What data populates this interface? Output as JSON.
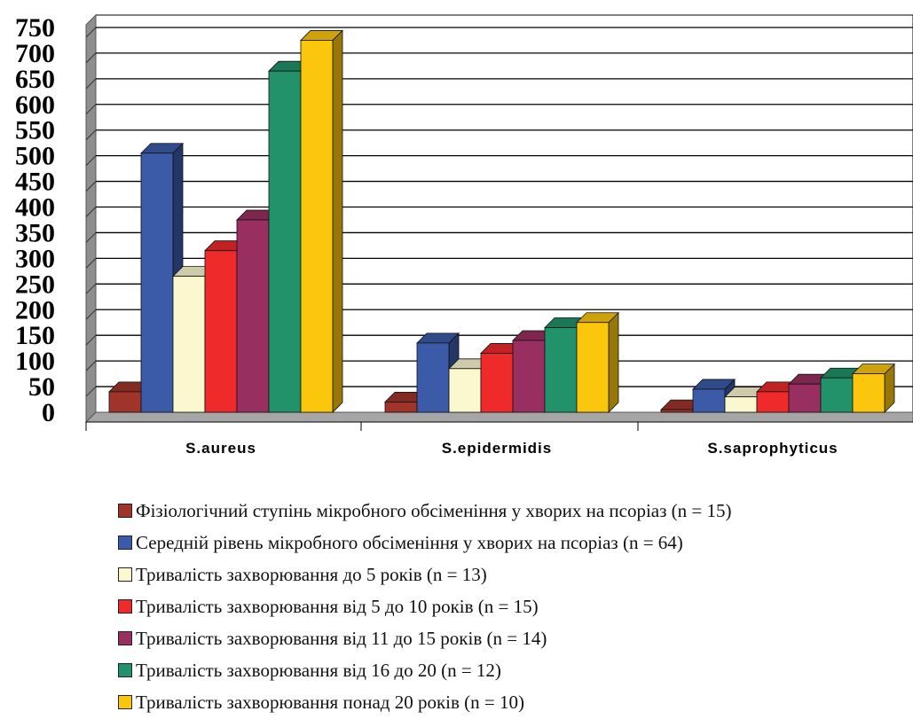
{
  "chart_data": {
    "type": "bar",
    "title": "",
    "xlabel": "",
    "ylabel": "",
    "ylim": [
      0,
      750
    ],
    "yticks": [
      "0",
      "50",
      "100",
      "150",
      "200",
      "250",
      "300",
      "350",
      "400",
      "450",
      "500",
      "550",
      "600",
      "650",
      "700",
      "750"
    ],
    "grid": true,
    "legend_position": "bottom",
    "categories": [
      "S.aureus",
      "S.epidermidis",
      "S.saprophyticus"
    ],
    "series": [
      {
        "name": "Фізіологічний ступінь мікробного обсіменіння у хворих на псоріаз (n = 15)",
        "values": [
          40,
          20,
          5
        ],
        "color": "#a0342a"
      },
      {
        "name": "Середній рівень мікробного обсіменіння у хворих на псоріаз (n = 64)",
        "values": [
          505,
          135,
          45
        ],
        "color": "#3b5aa8"
      },
      {
        "name": "Тривалість захворювання до 5 років (n = 13)",
        "values": [
          265,
          85,
          30
        ],
        "color": "#fbf8cf"
      },
      {
        "name": "Тривалість захворювання від 5 до 10 років (n = 15)",
        "values": [
          315,
          115,
          40
        ],
        "color": "#ee2a2a"
      },
      {
        "name": "Тривалість захворювання від 11 до 15 років (n = 14)",
        "values": [
          375,
          140,
          55
        ],
        "color": "#982f60"
      },
      {
        "name": "Тривалість захворювання від 16 до 20 (n = 12)",
        "values": [
          665,
          165,
          67
        ],
        "color": "#21926a"
      },
      {
        "name": "Тривалість захворювання понад 20 років (n = 10)",
        "values": [
          725,
          175,
          75
        ],
        "color": "#fbc70c"
      }
    ]
  }
}
